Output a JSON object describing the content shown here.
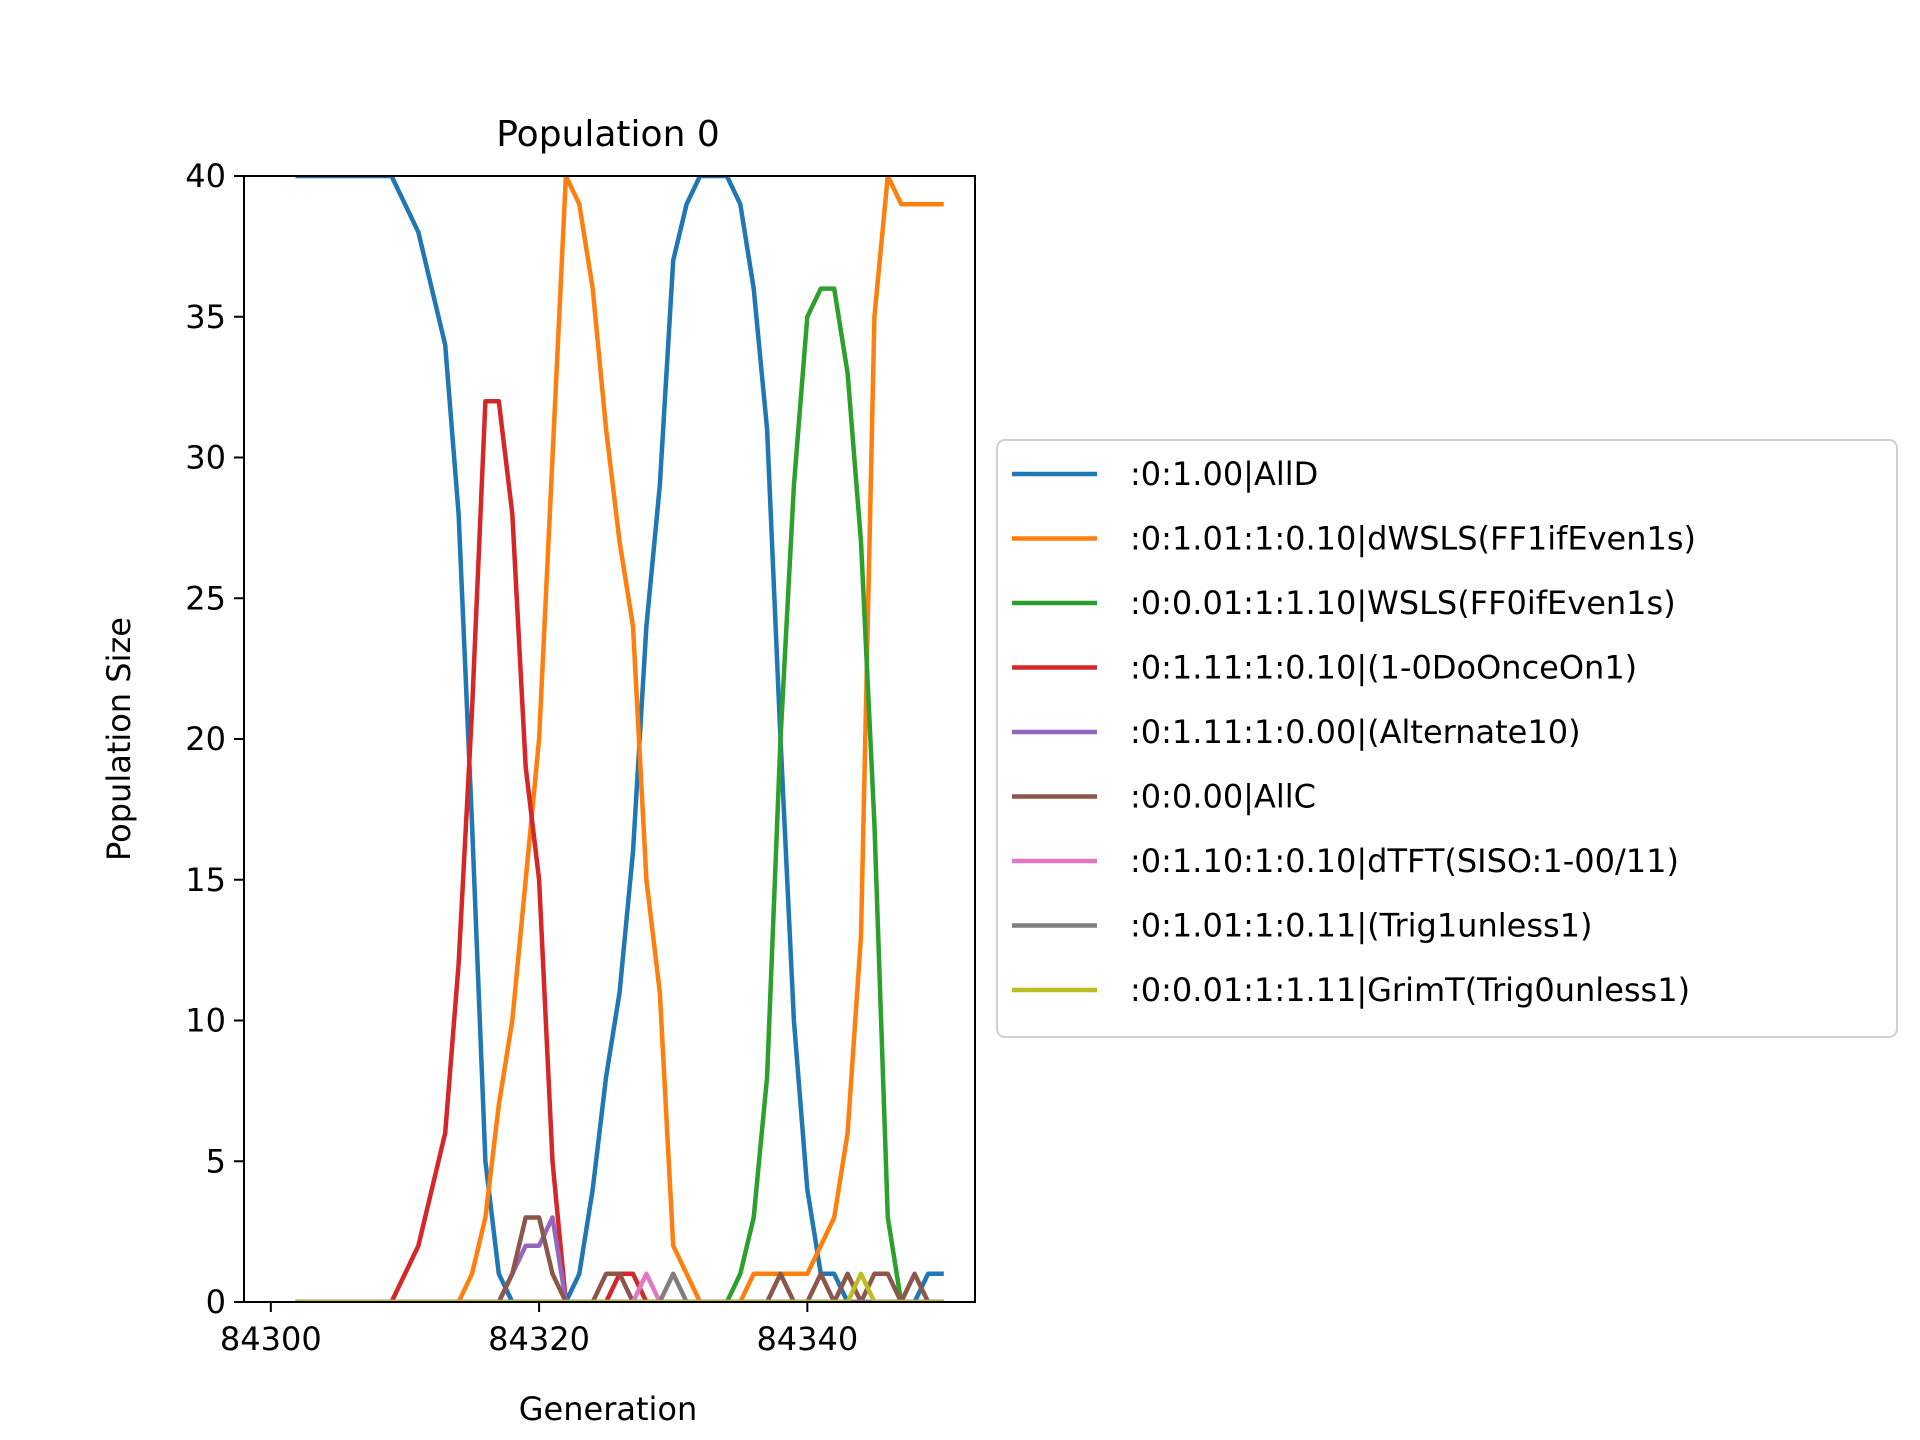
{
  "chart_data": {
    "type": "line",
    "title": "Population 0",
    "xlabel": "Generation",
    "ylabel": "Population Size",
    "xlim": [
      84298,
      84352.5
    ],
    "ylim": [
      0,
      40
    ],
    "xticks": [
      84300,
      84320,
      84340
    ],
    "yticks": [
      0,
      5,
      10,
      15,
      20,
      25,
      30,
      35,
      40
    ],
    "grid": false,
    "legend_position": "right",
    "x": [
      84302,
      84303,
      84304,
      84305,
      84306,
      84307,
      84308,
      84309,
      84310,
      84311,
      84312,
      84313,
      84314,
      84315,
      84316,
      84317,
      84318,
      84319,
      84320,
      84321,
      84322,
      84323,
      84324,
      84325,
      84326,
      84327,
      84328,
      84329,
      84330,
      84331,
      84332,
      84333,
      84334,
      84335,
      84336,
      84337,
      84338,
      84339,
      84340,
      84341,
      84342,
      84343,
      84344,
      84345,
      84346,
      84347,
      84348,
      84349,
      84350
    ],
    "series": [
      {
        "name": ":0:1.00|AllD",
        "color": "#1f77b4",
        "values": [
          40,
          40,
          40,
          40,
          40,
          40,
          40,
          40,
          39,
          38,
          36,
          34,
          28,
          17,
          5,
          1,
          0,
          0,
          0,
          0,
          0,
          1,
          4,
          8,
          11,
          16,
          24,
          29,
          37,
          39,
          40,
          40,
          40,
          39,
          36,
          31,
          20,
          10,
          4,
          1,
          1,
          0,
          0,
          0,
          0,
          0,
          0,
          1,
          1
        ]
      },
      {
        "name": ":0:1.01:1:0.10|dWSLS(FF1ifEven1s)",
        "color": "#ff7f0e",
        "values": [
          0,
          0,
          0,
          0,
          0,
          0,
          0,
          0,
          0,
          0,
          0,
          0,
          0,
          1,
          3,
          7,
          10,
          15,
          20,
          30,
          40,
          39,
          36,
          31,
          27,
          24,
          15,
          11,
          2,
          1,
          0,
          0,
          0,
          0,
          1,
          1,
          1,
          1,
          1,
          2,
          3,
          6,
          13,
          35,
          40,
          39,
          39,
          39,
          39
        ]
      },
      {
        "name": ":0:0.01:1:1.10|WSLS(FF0ifEven1s)",
        "color": "#2ca02c",
        "values": [
          0,
          0,
          0,
          0,
          0,
          0,
          0,
          0,
          0,
          0,
          0,
          0,
          0,
          0,
          0,
          0,
          0,
          0,
          0,
          0,
          0,
          0,
          0,
          0,
          0,
          0,
          0,
          0,
          0,
          0,
          0,
          0,
          0,
          1,
          3,
          8,
          20,
          29,
          35,
          36,
          36,
          33,
          27,
          17,
          3,
          0,
          0,
          0,
          0
        ]
      },
      {
        "name": ":0:1.11:1:0.10|(1-0DoOnceOn1)",
        "color": "#d62728",
        "values": [
          0,
          0,
          0,
          0,
          0,
          0,
          0,
          0,
          1,
          2,
          4,
          6,
          12,
          21,
          32,
          32,
          28,
          19,
          15,
          5,
          0,
          0,
          0,
          0,
          1,
          1,
          0,
          0,
          0,
          0,
          0,
          0,
          0,
          0,
          0,
          0,
          0,
          0,
          0,
          0,
          0,
          0,
          0,
          0,
          0,
          0,
          0,
          0,
          0
        ]
      },
      {
        "name": ":0:1.11:1:0.00|(Alternate10)",
        "color": "#9467bd",
        "values": [
          0,
          0,
          0,
          0,
          0,
          0,
          0,
          0,
          0,
          0,
          0,
          0,
          0,
          0,
          0,
          0,
          1,
          2,
          2,
          3,
          0,
          0,
          0,
          0,
          0,
          0,
          0,
          0,
          0,
          0,
          0,
          0,
          0,
          0,
          0,
          0,
          0,
          0,
          0,
          0,
          0,
          0,
          0,
          0,
          0,
          0,
          0,
          0,
          0
        ]
      },
      {
        "name": ":0:0.00|AllC",
        "color": "#8c564b",
        "values": [
          0,
          0,
          0,
          0,
          0,
          0,
          0,
          0,
          0,
          0,
          0,
          0,
          0,
          0,
          0,
          0,
          1,
          3,
          3,
          1,
          0,
          0,
          0,
          1,
          1,
          0,
          0,
          0,
          0,
          0,
          0,
          0,
          0,
          0,
          0,
          0,
          1,
          0,
          0,
          1,
          0,
          1,
          0,
          1,
          1,
          0,
          1,
          0,
          0
        ]
      },
      {
        "name": ":0:1.10:1:0.10|dTFT(SISO:1-00/11)",
        "color": "#e377c2",
        "values": [
          0,
          0,
          0,
          0,
          0,
          0,
          0,
          0,
          0,
          0,
          0,
          0,
          0,
          0,
          0,
          0,
          0,
          0,
          0,
          0,
          0,
          0,
          0,
          0,
          0,
          0,
          1,
          0,
          0,
          0,
          0,
          0,
          0,
          0,
          0,
          0,
          0,
          0,
          0,
          0,
          0,
          0,
          0,
          0,
          0,
          0,
          0,
          0,
          0
        ]
      },
      {
        "name": ":0:1.01:1:0.11|(Trig1unless1)",
        "color": "#7f7f7f",
        "values": [
          0,
          0,
          0,
          0,
          0,
          0,
          0,
          0,
          0,
          0,
          0,
          0,
          0,
          0,
          0,
          0,
          0,
          0,
          0,
          0,
          0,
          0,
          0,
          0,
          0,
          0,
          0,
          0,
          1,
          0,
          0,
          0,
          0,
          0,
          0,
          0,
          0,
          0,
          0,
          0,
          0,
          0,
          0,
          0,
          0,
          0,
          0,
          0,
          0
        ]
      },
      {
        "name": ":0:0.01:1:1.11|GrimT(Trig0unless1)",
        "color": "#bcbd22",
        "values": [
          0,
          0,
          0,
          0,
          0,
          0,
          0,
          0,
          0,
          0,
          0,
          0,
          0,
          0,
          0,
          0,
          0,
          0,
          0,
          0,
          0,
          0,
          0,
          0,
          0,
          0,
          0,
          0,
          0,
          0,
          0,
          0,
          0,
          0,
          0,
          0,
          0,
          0,
          0,
          0,
          0,
          0,
          1,
          0,
          0,
          0,
          0,
          0,
          0
        ]
      }
    ]
  }
}
